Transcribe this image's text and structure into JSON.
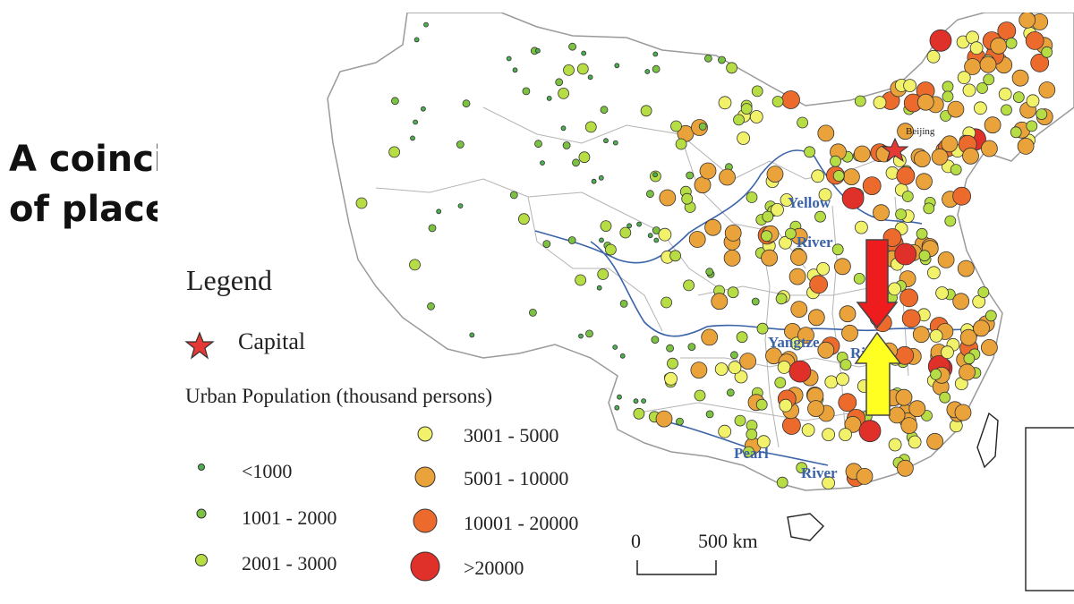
{
  "slide": {
    "title_line1": "A coincidence",
    "title_line2": "of place…"
  },
  "legend": {
    "title": "Legend",
    "capital_label": "Capital",
    "population_heading": "Urban Population (thousand persons)",
    "classes": [
      {
        "label": "<1000",
        "color": "#4caf50"
      },
      {
        "label": "1001 - 2000",
        "color": "#7cc242"
      },
      {
        "label": "2001 - 3000",
        "color": "#b7dd44"
      },
      {
        "label": "3001 - 5000",
        "color": "#f2f26a"
      },
      {
        "label": "5001 - 10000",
        "color": "#e9a33a"
      },
      {
        "label": "10001 - 20000",
        "color": "#ec6a2c"
      },
      {
        "label": ">20000",
        "color": "#e0302a"
      }
    ]
  },
  "map": {
    "city_label": "Beijing",
    "rivers": {
      "yellow_line1": "Yellow",
      "yellow_line2": "River",
      "yangtze_line1": "Yangtze",
      "yangtze_line2": "River",
      "pearl_line1": "Pearl",
      "pearl_line2": "River"
    },
    "scale": {
      "zero": "0",
      "distance": "500 km"
    },
    "arrow_colors": {
      "down": "#ee1c1c",
      "up": "#ffff22"
    },
    "capital_color": "#e53935"
  }
}
